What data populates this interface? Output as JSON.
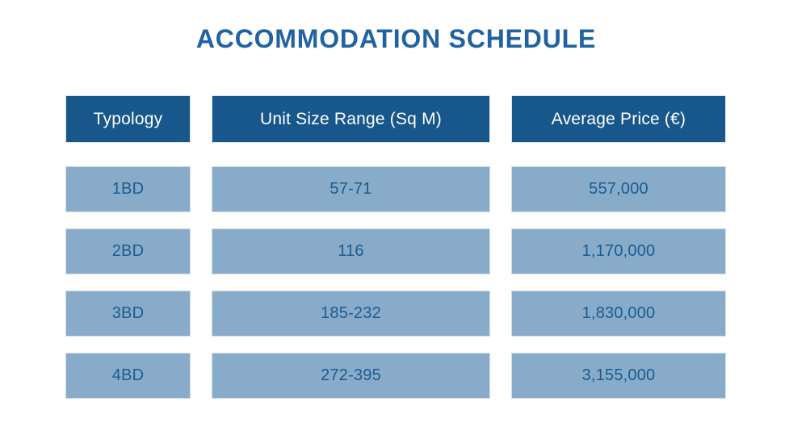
{
  "title": "ACCOMMODATION SCHEDULE",
  "chart_data": {
    "type": "table",
    "title": "ACCOMMODATION SCHEDULE",
    "columns": [
      "Typology",
      "Unit Size Range (Sq M)",
      "Average Price (€)"
    ],
    "rows": [
      [
        "1BD",
        "57-71",
        "557,000"
      ],
      [
        "2BD",
        "116",
        "1,170,000"
      ],
      [
        "3BD",
        "185-232",
        "1,830,000"
      ],
      [
        "4BD",
        "272-395",
        "3,155,000"
      ]
    ]
  },
  "colors": {
    "title_text": "#2062A2",
    "header_background": "#17578B",
    "header_text": "#FFFFFF",
    "cell_background": "#88ABC9",
    "cell_text": "#1B5C8F",
    "page_background": "#FFFFFF"
  }
}
